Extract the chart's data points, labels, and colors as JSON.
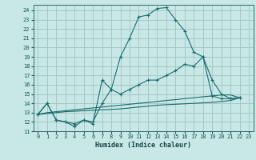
{
  "xlabel": "Humidex (Indice chaleur)",
  "background_color": "#c8e8e8",
  "grid_color": "#a8c8c8",
  "line_color": "#1a6b6b",
  "xlim": [
    -0.5,
    23.5
  ],
  "ylim": [
    11,
    24.6
  ],
  "yticks": [
    11,
    12,
    13,
    14,
    15,
    16,
    17,
    18,
    19,
    20,
    21,
    22,
    23,
    24
  ],
  "xticks": [
    0,
    1,
    2,
    3,
    4,
    5,
    6,
    7,
    8,
    9,
    10,
    11,
    12,
    13,
    14,
    15,
    16,
    17,
    18,
    19,
    20,
    21,
    22,
    23
  ],
  "line1": [
    [
      0,
      12.8
    ],
    [
      1,
      14.0
    ],
    [
      2,
      12.2
    ],
    [
      3,
      12.0
    ],
    [
      4,
      11.5
    ],
    [
      5,
      12.2
    ],
    [
      6,
      12.0
    ],
    [
      7,
      14.0
    ],
    [
      8,
      15.5
    ],
    [
      9,
      19.0
    ],
    [
      10,
      21.0
    ],
    [
      11,
      23.3
    ],
    [
      12,
      23.5
    ],
    [
      13,
      24.2
    ],
    [
      14,
      24.3
    ],
    [
      15,
      23.0
    ],
    [
      16,
      21.8
    ],
    [
      17,
      19.5
    ],
    [
      18,
      19.0
    ],
    [
      19,
      14.8
    ],
    [
      20,
      14.5
    ],
    [
      21,
      14.5
    ],
    [
      22,
      14.6
    ]
  ],
  "line2": [
    [
      0,
      12.8
    ],
    [
      1,
      14.0
    ],
    [
      2,
      12.2
    ],
    [
      3,
      12.0
    ],
    [
      4,
      11.8
    ],
    [
      5,
      12.2
    ],
    [
      6,
      11.8
    ],
    [
      7,
      16.5
    ],
    [
      8,
      15.5
    ],
    [
      9,
      15.0
    ],
    [
      10,
      15.5
    ],
    [
      11,
      16.0
    ],
    [
      12,
      16.5
    ],
    [
      13,
      16.5
    ],
    [
      14,
      17.0
    ],
    [
      15,
      17.5
    ],
    [
      16,
      18.2
    ],
    [
      17,
      18.0
    ],
    [
      18,
      19.0
    ],
    [
      19,
      16.5
    ],
    [
      20,
      15.0
    ],
    [
      21,
      14.5
    ],
    [
      22,
      14.6
    ]
  ],
  "line3": [
    [
      0,
      12.8
    ],
    [
      1,
      13.0
    ],
    [
      2,
      13.1
    ],
    [
      3,
      13.2
    ],
    [
      4,
      13.3
    ],
    [
      5,
      13.4
    ],
    [
      6,
      13.5
    ],
    [
      7,
      13.6
    ],
    [
      8,
      13.7
    ],
    [
      9,
      13.8
    ],
    [
      10,
      13.9
    ],
    [
      11,
      14.0
    ],
    [
      12,
      14.1
    ],
    [
      13,
      14.2
    ],
    [
      14,
      14.3
    ],
    [
      15,
      14.4
    ],
    [
      16,
      14.5
    ],
    [
      17,
      14.6
    ],
    [
      18,
      14.7
    ],
    [
      19,
      14.8
    ],
    [
      20,
      14.9
    ],
    [
      21,
      14.9
    ],
    [
      22,
      14.6
    ]
  ],
  "line4": [
    [
      0,
      12.8
    ],
    [
      1,
      12.9
    ],
    [
      2,
      13.0
    ],
    [
      3,
      13.1
    ],
    [
      4,
      13.15
    ],
    [
      5,
      13.2
    ],
    [
      6,
      13.25
    ],
    [
      7,
      13.3
    ],
    [
      8,
      13.35
    ],
    [
      9,
      13.4
    ],
    [
      10,
      13.5
    ],
    [
      11,
      13.6
    ],
    [
      12,
      13.7
    ],
    [
      13,
      13.8
    ],
    [
      14,
      13.85
    ],
    [
      15,
      13.9
    ],
    [
      16,
      13.95
    ],
    [
      17,
      14.0
    ],
    [
      18,
      14.05
    ],
    [
      19,
      14.1
    ],
    [
      20,
      14.2
    ],
    [
      21,
      14.3
    ],
    [
      22,
      14.6
    ]
  ]
}
